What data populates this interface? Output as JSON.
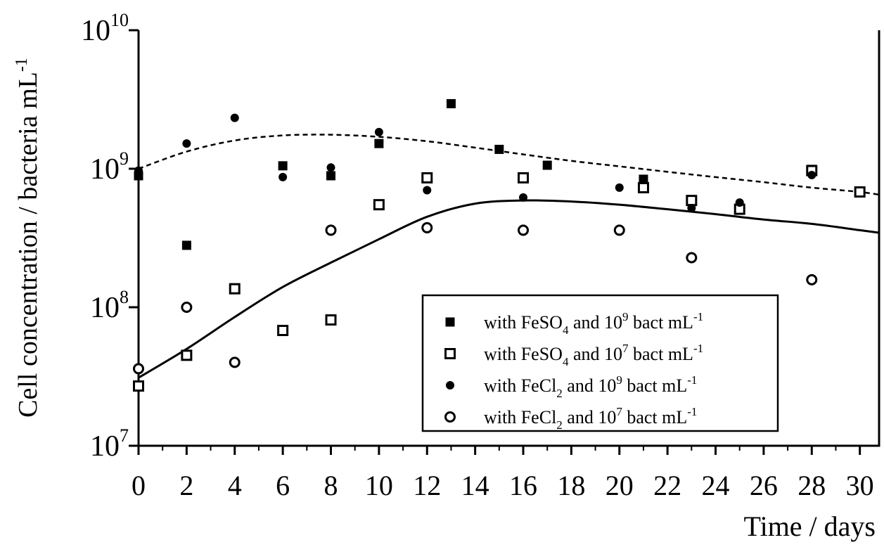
{
  "chart_data": {
    "type": "scatter",
    "xlabel": "Time / days",
    "ylabel": "Cell concentration / bacteria mL",
    "ylabel_sup": "-1",
    "x_ticks": [
      0,
      2,
      4,
      6,
      8,
      10,
      12,
      14,
      16,
      18,
      20,
      22,
      24,
      26,
      28,
      30
    ],
    "x_tick_labels": [
      "0",
      "2",
      "4",
      "6",
      "8",
      "10",
      "12",
      "14",
      "16",
      "18",
      "20",
      "22",
      "24",
      "26",
      "28",
      "30"
    ],
    "xlim": [
      0,
      30.8
    ],
    "y_scale": "log",
    "ylim": [
      10000000,
      10000000000
    ],
    "y_ticks": [
      {
        "value": 10000000,
        "base": "10",
        "exp": "7"
      },
      {
        "value": 100000000,
        "base": "10",
        "exp": "8"
      },
      {
        "value": 1000000000,
        "base": "10",
        "exp": "9"
      },
      {
        "value": 10000000000,
        "base": "10",
        "exp": "10"
      }
    ],
    "legend_position": "lower-right",
    "series": [
      {
        "name": "with FeSO4 and 10^9 bact mL-1",
        "label_parts": [
          "with FeSO",
          "4",
          " and 10",
          "9",
          " bact mL",
          "-1"
        ],
        "marker": "filled-square",
        "x": [
          0,
          2,
          6,
          8,
          10,
          13,
          15,
          17,
          21,
          28
        ],
        "y": [
          890000000,
          280000000,
          1050000000,
          890000000,
          1520000000,
          2950000000,
          1380000000,
          1060000000,
          840000000,
          990000000
        ]
      },
      {
        "name": "with FeSO4 and 10^7 bact mL-1",
        "label_parts": [
          "with FeSO",
          "4",
          " and 10",
          "7",
          " bact mL",
          "-1"
        ],
        "marker": "open-square",
        "x": [
          0,
          2,
          4,
          6,
          8,
          10,
          12,
          16,
          21,
          23,
          25,
          28,
          30
        ],
        "y": [
          27000000,
          45000000,
          136000000,
          68000000,
          81000000,
          550000000,
          860000000,
          860000000,
          730000000,
          590000000,
          510000000,
          970000000,
          680000000
        ]
      },
      {
        "name": "with FeCl2 and 10^9 bact mL-1",
        "label_parts": [
          "with FeCl",
          "2",
          " and 10",
          "9",
          " bact mL",
          "-1"
        ],
        "marker": "filled-circle",
        "x": [
          0,
          2,
          4,
          6,
          8,
          10,
          12,
          16,
          20,
          23,
          25,
          28
        ],
        "y": [
          970000000,
          1520000000,
          2330000000,
          870000000,
          1020000000,
          1840000000,
          700000000,
          620000000,
          730000000,
          520000000,
          570000000,
          900000000
        ]
      },
      {
        "name": "with FeCl2 and 10^7 bact mL-1",
        "label_parts": [
          "with FeCl",
          "2",
          " and 10",
          "7",
          " bact mL",
          "-1"
        ],
        "marker": "open-circle",
        "x": [
          0,
          2,
          4,
          8,
          12,
          16,
          20,
          23,
          28
        ],
        "y": [
          36000000,
          100000000,
          40000000,
          360000000,
          375000000,
          360000000,
          360000000,
          228000000,
          158000000
        ]
      }
    ],
    "fit_curves": [
      {
        "style": "dashed",
        "x": [
          0,
          2,
          4,
          6,
          8,
          10,
          12,
          14,
          16,
          18,
          20,
          22,
          24,
          26,
          28,
          30,
          30.8
        ],
        "y": [
          1000000000,
          1330000000,
          1600000000,
          1740000000,
          1760000000,
          1700000000,
          1580000000,
          1420000000,
          1270000000,
          1140000000,
          1040000000,
          950000000,
          870000000,
          800000000,
          730000000,
          680000000,
          650000000
        ]
      },
      {
        "style": "solid",
        "x": [
          0,
          2,
          4,
          6,
          8,
          10,
          12,
          14,
          16,
          18,
          20,
          22,
          24,
          26,
          28,
          30,
          30.8
        ],
        "y": [
          31000000,
          50000000,
          85000000,
          140000000,
          210000000,
          310000000,
          450000000,
          560000000,
          590000000,
          580000000,
          550000000,
          510000000,
          470000000,
          430000000,
          400000000,
          360000000,
          345000000
        ]
      }
    ]
  }
}
